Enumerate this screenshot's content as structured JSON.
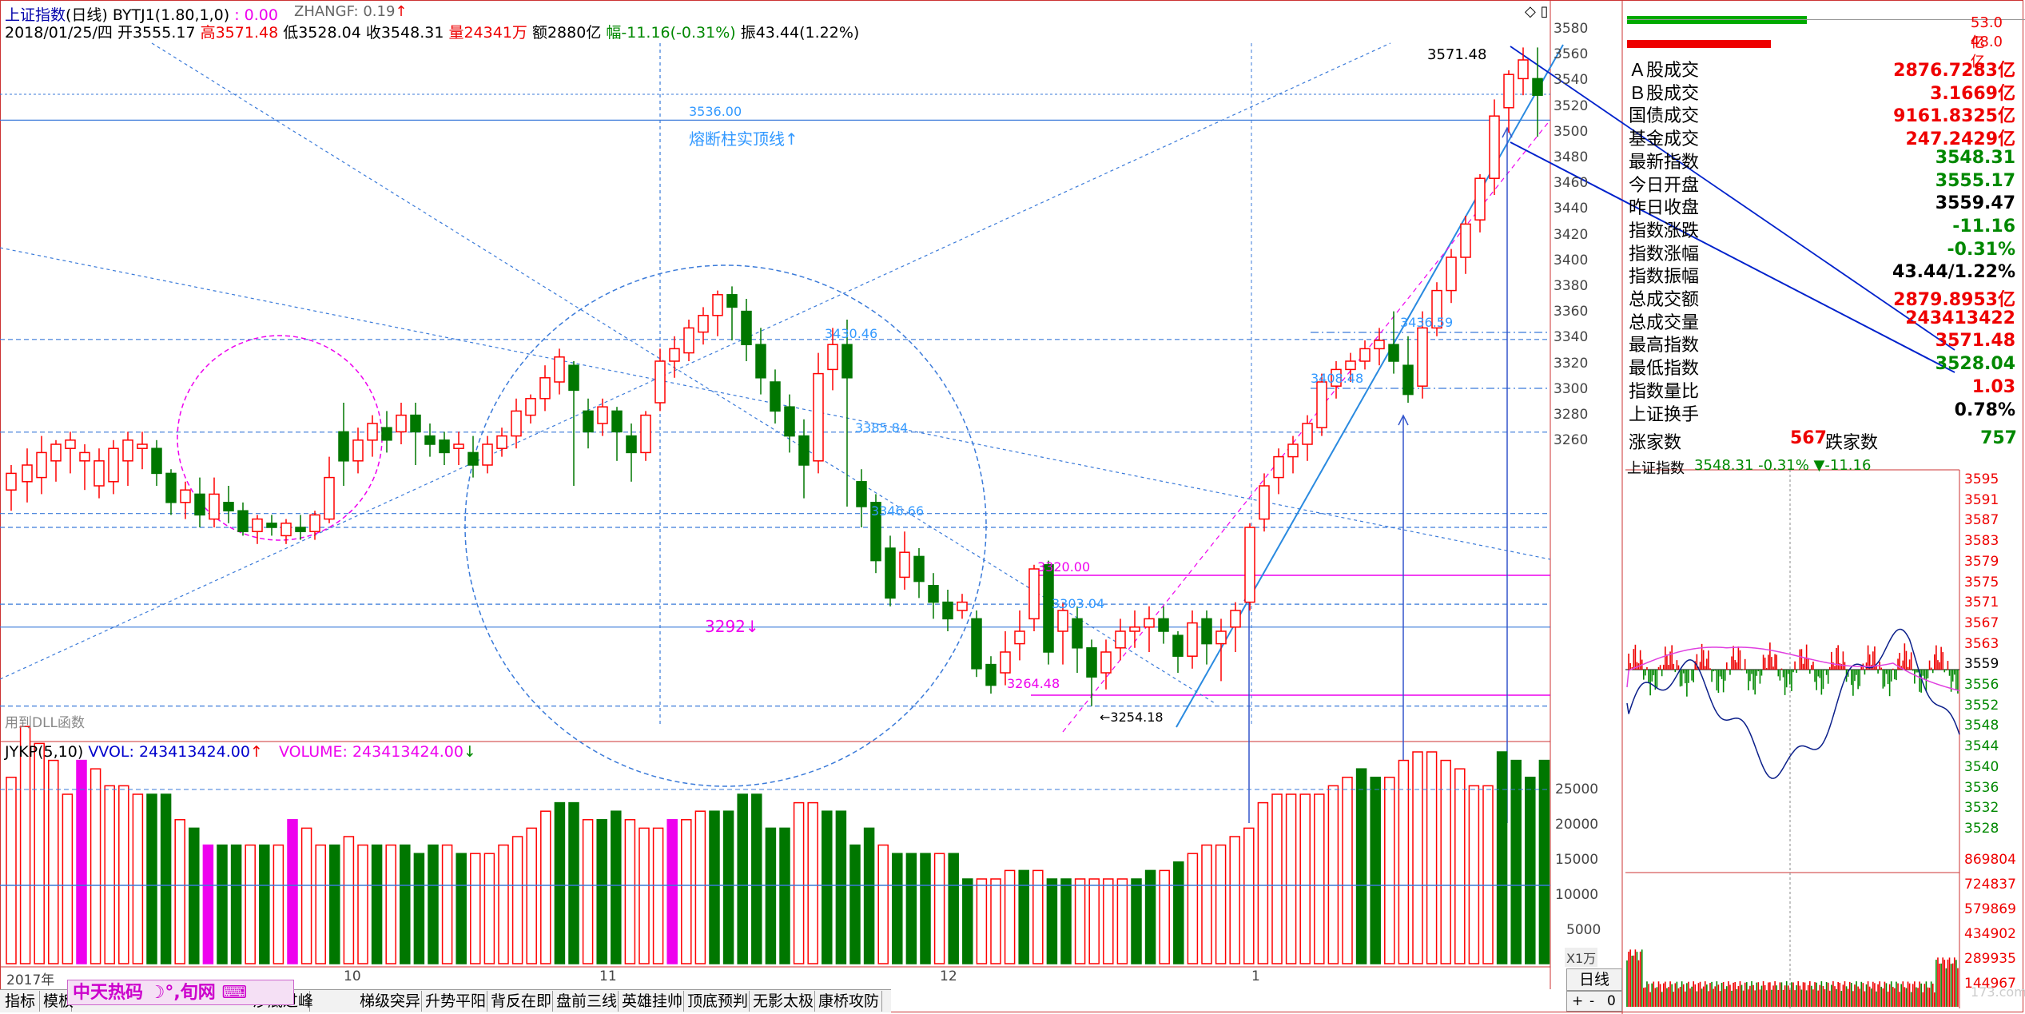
{
  "header": {
    "index_name": "上证指数",
    "period": "(日线)",
    "indicator": "BYTJ1(1.80,1,0)",
    "indicator_value": ": 0.00",
    "zhangf": "ZHANGF: 0.19",
    "zhangf_arrow": "↑"
  },
  "quote_line": {
    "date": "2018/01/25/四",
    "open": "开3555.17",
    "high": "高3571.48",
    "low": "低3528.04",
    "close": "收3548.31",
    "volume": "量24341万",
    "amount": "额2880亿",
    "change": "幅-11.16(-0.31%)",
    "amplitude": "振43.44(1.22%)"
  },
  "chart_annotations": {
    "top_high": "3571.48",
    "line_3536": "3536.00",
    "melt_text": "熔断柱实顶线↑",
    "lvl_3430": "3430.46",
    "lvl_3385": "3385.84",
    "lvl_3346": "3346.66",
    "lvl_3320": "3320.00",
    "lvl_3303": "3303.04",
    "lvl_3264": "3264.48",
    "low_3254": "3254.18",
    "mark_3292": "3292↓",
    "lvl_3436": "3436.59",
    "lvl_3408": "3408.48",
    "dll_text": "用到DLL函数"
  },
  "price_axis": [
    "3580",
    "3560",
    "3540",
    "3520",
    "3500",
    "3480",
    "3460",
    "3440",
    "3420",
    "3400",
    "3380",
    "3360",
    "3340",
    "3320",
    "3300",
    "3280",
    "3260"
  ],
  "vol_axis": [
    "25000",
    "20000",
    "15000",
    "10000",
    "5000"
  ],
  "vol_unit": "X1万",
  "time_axis": [
    "2017年",
    "10",
    "11",
    "12",
    "1"
  ],
  "volume_line": {
    "name": "JYKP(5,10)",
    "vvol": "VVOL: 243413424.00",
    "vvol_arrow": "↑",
    "volume": "VOLUME: 243413424.00",
    "volume_arrow": "↓"
  },
  "bottom_tabs": [
    "指标",
    "模板",
    "沙底过峰",
    "梯级突异",
    "升势平阳",
    "背反在即",
    "盘前三线",
    "英雄挂帅",
    "顶底预判",
    "无影太极",
    "康桥攻防"
  ],
  "banner": "中天热码 ☽°,旬网 ⌨",
  "right_buttons": {
    "period": "日线",
    "plus": "+",
    "minus": "-",
    "zero": "0"
  },
  "right_panel": {
    "ratio_top": "53.0亿",
    "ratio_bottom": "48.0亿",
    "rows": [
      {
        "label": "Ａ股成交",
        "value": "2876.7283亿",
        "color": "#e00"
      },
      {
        "label": "Ｂ股成交",
        "value": "3.1669亿",
        "color": "#e00"
      },
      {
        "label": "国债成交",
        "value": "9161.8325亿",
        "color": "#e00"
      },
      {
        "label": "基金成交",
        "value": "247.2429亿",
        "color": "#e00"
      },
      {
        "label": "最新指数",
        "value": "3548.31",
        "color": "#080"
      },
      {
        "label": "今日开盘",
        "value": "3555.17",
        "color": "#080"
      },
      {
        "label": "昨日收盘",
        "value": "3559.47",
        "color": "#000"
      },
      {
        "label": "指数涨跌",
        "value": "-11.16",
        "color": "#080"
      },
      {
        "label": "指数涨幅",
        "value": "-0.31%",
        "color": "#080"
      },
      {
        "label": "指数振幅",
        "value": "43.44/1.22%",
        "color": "#000"
      },
      {
        "label": "总成交额",
        "value": "2879.8953亿",
        "color": "#e00"
      },
      {
        "label": "总成交量",
        "value": "243413422",
        "color": "#e00"
      },
      {
        "label": "最高指数",
        "value": "3571.48",
        "color": "#e00"
      },
      {
        "label": "最低指数",
        "value": "3528.04",
        "color": "#080"
      },
      {
        "label": "指数量比",
        "value": "1.03",
        "color": "#e00"
      },
      {
        "label": "上证换手",
        "value": "0.78%",
        "color": "#000"
      }
    ],
    "rise_label": "涨家数",
    "rise_value": "567",
    "fall_label": "跌家数",
    "fall_value": "757",
    "mini_title": "上证指数",
    "mini_quote": "3548.31 -0.31% ▼-11.16",
    "mini_left_axis": [
      "3595",
      "3591",
      "3587",
      "3583",
      "3579",
      "3575",
      "3571",
      "3567",
      "3563",
      "3559",
      "3556",
      "3552",
      "3548",
      "3544",
      "3540",
      "3536",
      "3532",
      "3528"
    ],
    "mini_vol_axis": [
      "869804",
      "724837",
      "579869",
      "434902",
      "289935",
      "144967"
    ],
    "watermark": "173.com"
  },
  "colors": {
    "up": "#ff0000",
    "down": "#007700",
    "grid": "#3a7ad9",
    "magenta": "#ee00ee"
  }
}
